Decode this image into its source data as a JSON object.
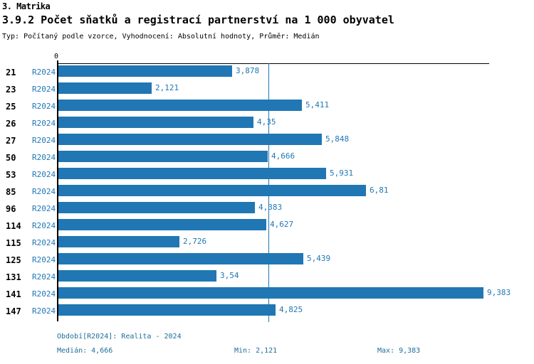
{
  "header": {
    "section": "3. Matrika",
    "title": "3.9.2 Počet sňatků a registrací partnerství na 1 000 obyvatel",
    "subtitle": "Typ: Počítaný podle vzorce, Vyhodnocení: Absolutní hodnoty, Průměr: Medián"
  },
  "chart_data": {
    "type": "bar",
    "orientation": "horizontal",
    "title": "3.9.2 Počet sňatků a registrací partnerství na 1 000 obyvatel",
    "categories": [
      "21",
      "23",
      "25",
      "26",
      "27",
      "50",
      "53",
      "85",
      "96",
      "114",
      "115",
      "125",
      "131",
      "141",
      "147"
    ],
    "series_label": "R2024",
    "values": [
      3.878,
      2.121,
      5.411,
      4.35,
      5.848,
      4.666,
      5.931,
      6.81,
      4.383,
      4.627,
      2.726,
      5.439,
      3.54,
      9.383,
      4.825
    ],
    "value_labels": [
      "3,878",
      "2,121",
      "5,411",
      "4,35",
      "5,848",
      "4,666",
      "5,931",
      "6,81",
      "4,383",
      "4,627",
      "2,726",
      "5,439",
      "3,54",
      "9,383",
      "4,825"
    ],
    "axis_origin_label": "0",
    "xlim": [
      0,
      9.5
    ],
    "median_line_value": 4.666,
    "grid": false,
    "legend_position": "none",
    "bar_color": "#2077b4",
    "label_color": "#1f77b4",
    "median_line_color": "#2077b4",
    "footer_text_color": "#1b6e99"
  },
  "footer": {
    "period": "Období[R2024]: Realita - 2024",
    "median": "Medián: 4,666",
    "min": "Min: 2,121",
    "max": "Max: 9,383"
  }
}
